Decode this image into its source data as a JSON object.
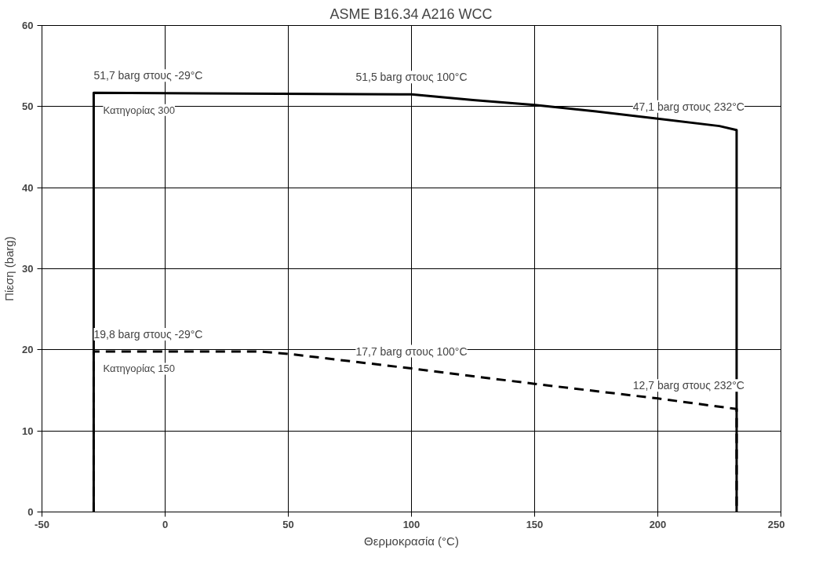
{
  "chart_data": {
    "type": "line",
    "title": "ASME B16.34 A216 WCC",
    "xlabel": "Θερμοκρασία (°C)",
    "ylabel": "Πίεση (barg)",
    "xlim": [
      -50,
      250
    ],
    "xticks": [
      -50,
      0,
      50,
      100,
      150,
      200,
      250
    ],
    "ylim": [
      0,
      60
    ],
    "yticks": [
      0,
      10,
      20,
      30,
      40,
      50,
      60
    ],
    "grid": true,
    "marker": "none",
    "series": [
      {
        "name": "Κατηγορίας 300",
        "color": "#000000",
        "line_style": "solid",
        "x": [
          -29,
          -29,
          100,
          125,
          150,
          175,
          200,
          225,
          232,
          232
        ],
        "values": [
          0,
          51.7,
          51.5,
          50.8,
          50.2,
          49.4,
          48.5,
          47.6,
          47.1,
          0
        ]
      },
      {
        "name": "Κατηγορίας 150",
        "color": "#000000",
        "line_style": "dashed",
        "x": [
          -29,
          -29,
          38,
          50,
          100,
          150,
          200,
          232,
          232
        ],
        "values": [
          0,
          19.8,
          19.8,
          19.5,
          17.7,
          15.8,
          14.0,
          12.7,
          0
        ]
      }
    ],
    "annotations": [
      {
        "text": "51,7 barg στους -29°C",
        "x": -29,
        "y": 51.7
      },
      {
        "text": "51,5 barg στους 100°C",
        "x": 100,
        "y": 51.5
      },
      {
        "text": "47,1 barg στους 232°C",
        "x": 232,
        "y": 47.1
      },
      {
        "text": "19,8 barg στους -29°C",
        "x": -29,
        "y": 19.8
      },
      {
        "text": "17,7 barg στους 100°C",
        "x": 100,
        "y": 17.7
      },
      {
        "text": "12,7 barg στους 232°C",
        "x": 232,
        "y": 12.7
      }
    ]
  }
}
